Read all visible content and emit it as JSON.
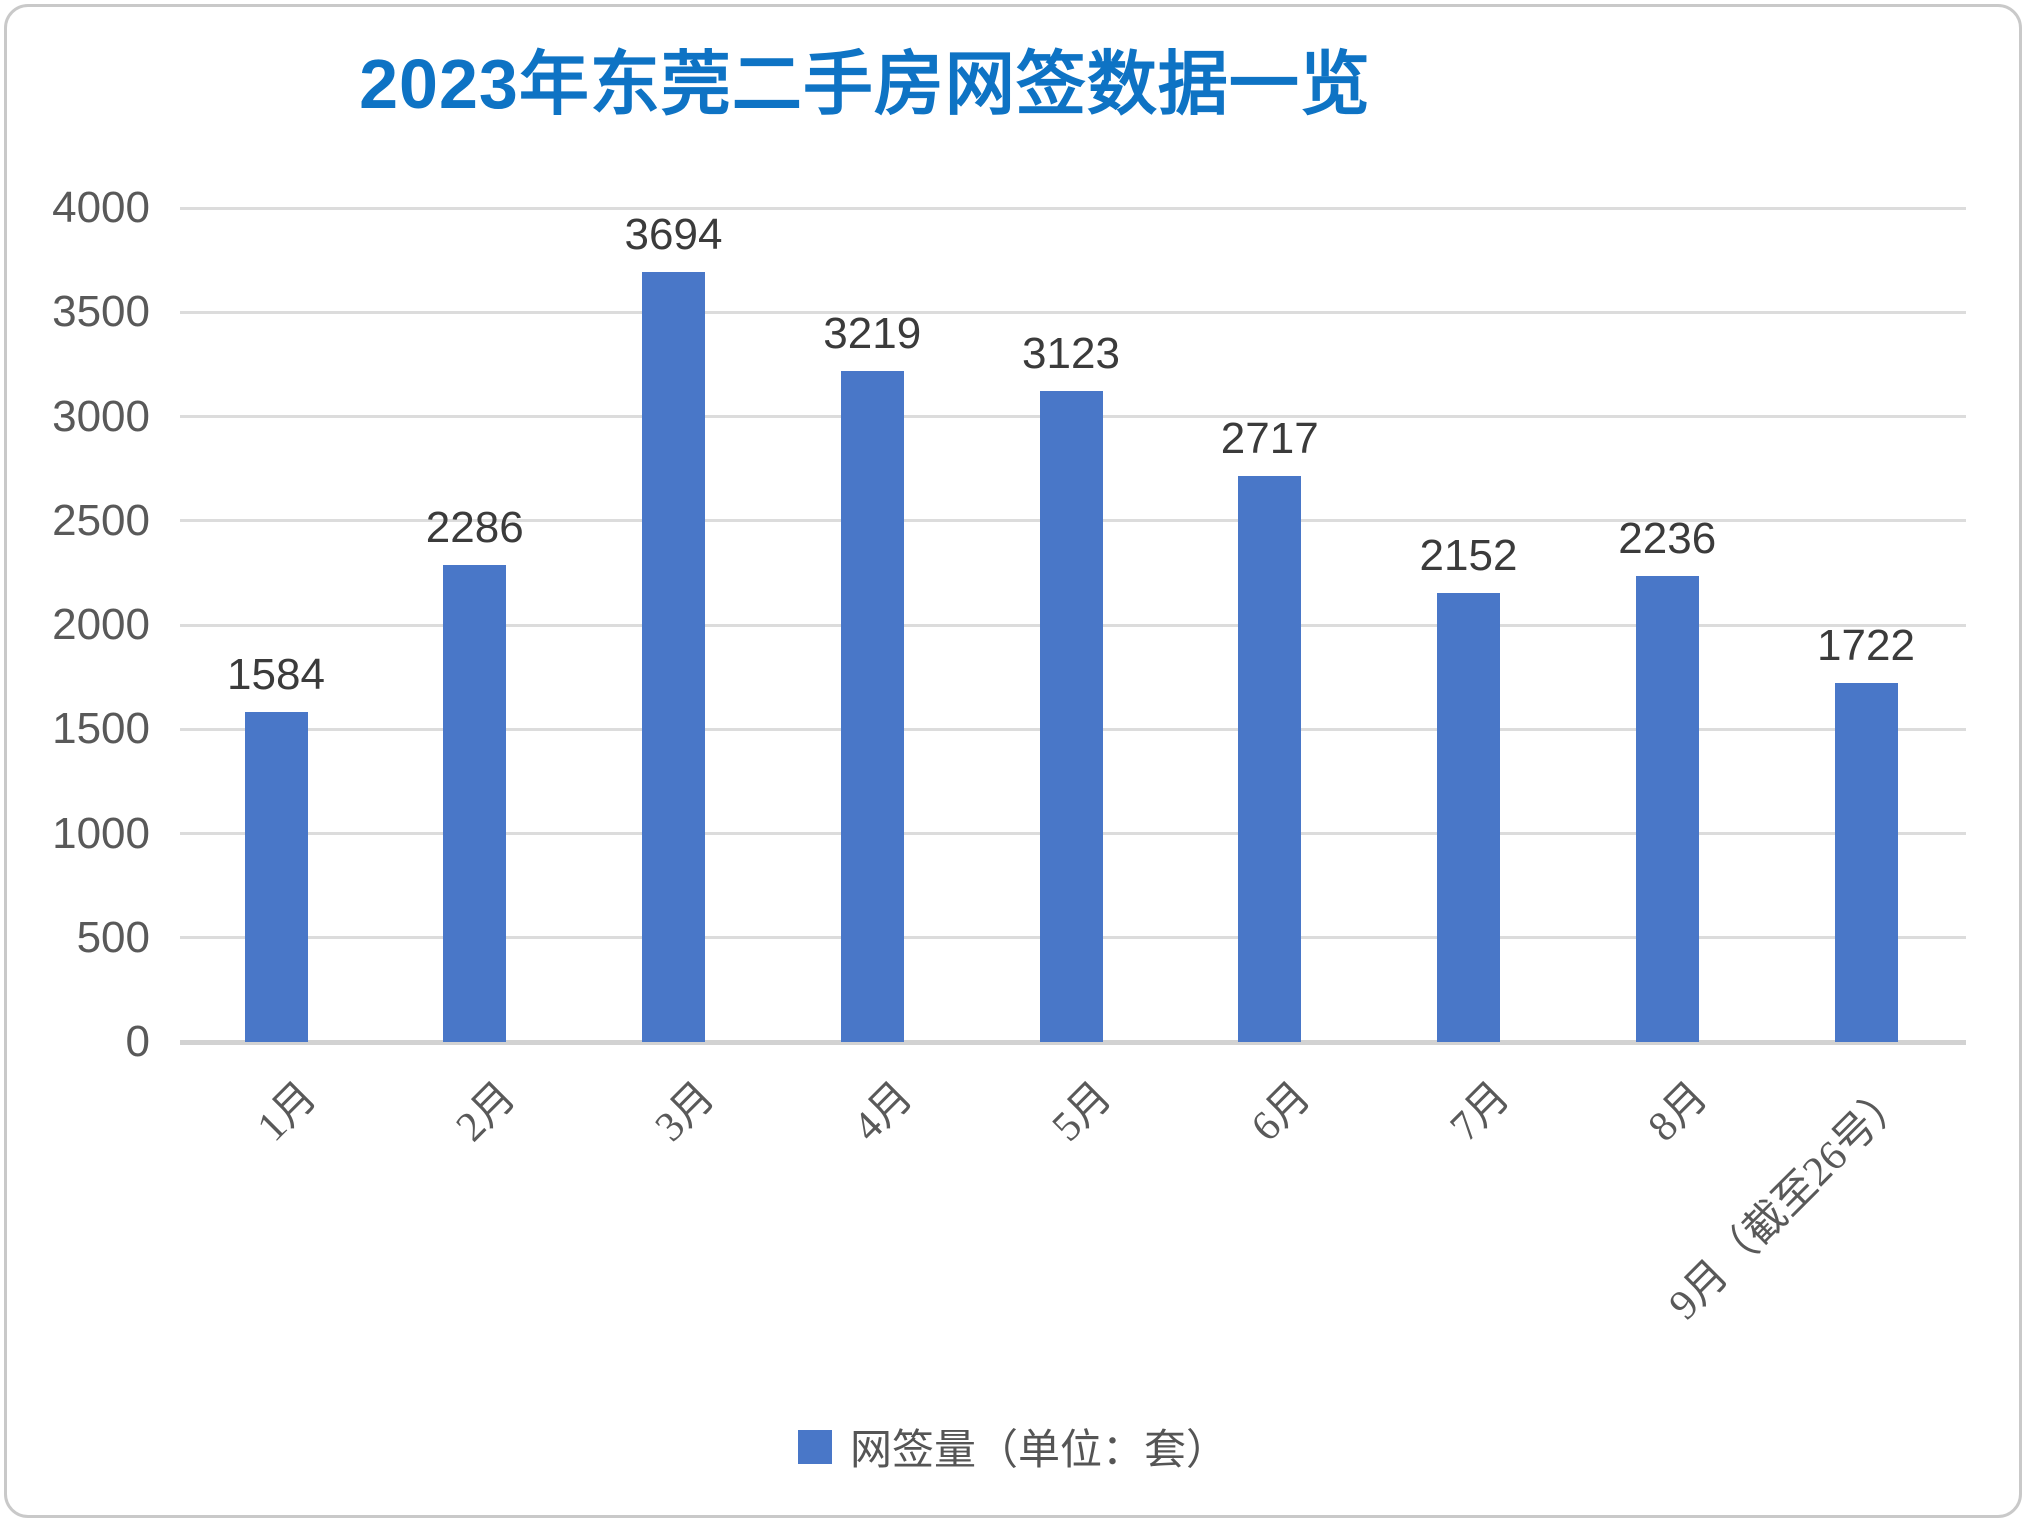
{
  "chart_data": {
    "type": "bar",
    "title": "2023年东莞二手房网签数据一览",
    "legend": "网签量（单位：套）",
    "categories": [
      "1月",
      "2月",
      "3月",
      "4月",
      "5月",
      "6月",
      "7月",
      "8月",
      "9月（截至26号）"
    ],
    "values": [
      1584,
      2286,
      3694,
      3219,
      3123,
      2717,
      2152,
      2236,
      1722
    ],
    "xlabel": "",
    "ylabel": "",
    "ylim": [
      0,
      4000
    ],
    "ytick_step": 500,
    "grid": true,
    "legend_position": "bottom",
    "colors": {
      "bar": "#4977c8",
      "title": "#0e73c4",
      "axis_text": "#595959",
      "data_label": "#3b3b3b",
      "gridline": "#dcdcdc",
      "card_border": "#c9c9c9"
    }
  }
}
